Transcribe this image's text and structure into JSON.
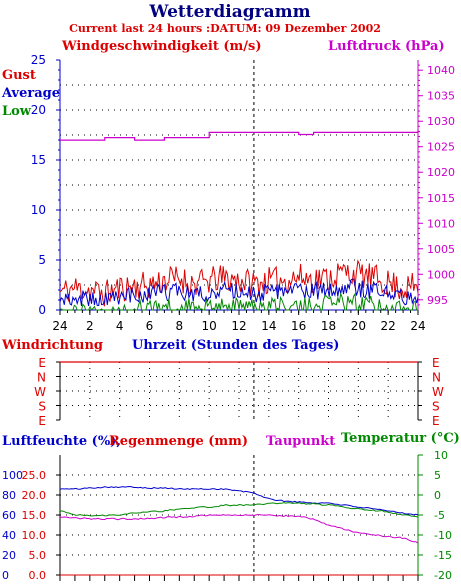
{
  "header": {
    "title": "Wetterdiagramm",
    "subtitle": "Current last 24 hours :DATUM: 09 Dezember 2002"
  },
  "colors": {
    "gust": "#dd0000",
    "average": "#0000cc",
    "low": "#008800",
    "pressure": "#cc00cc",
    "direction": "#dd0000",
    "humidity": "#0000cc",
    "rain": "#dd0000",
    "dewpoint": "#cc00cc",
    "temperature": "#008800",
    "title": "#000080"
  },
  "chart_data": [
    {
      "type": "line",
      "title": "Windgeschwindigkeit (m/s)",
      "ylabel_left": "Windgeschwindigkeit (m/s)",
      "ylabel_right": "Luftdruck (hPa)",
      "xlabel": "Uhrzeit (Stunden des Tages)",
      "legend": [
        "Gust",
        "Average",
        "Low"
      ],
      "x_ticks": [
        "24",
        "2",
        "4",
        "6",
        "8",
        "10",
        "12",
        "14",
        "16",
        "18",
        "20",
        "22",
        "24"
      ],
      "y_left_ticks": [
        "0",
        "5",
        "10",
        "15",
        "20",
        "25"
      ],
      "y_left_range": [
        0,
        25
      ],
      "y_right_ticks": [
        "995",
        "1000",
        "1005",
        "1010",
        "1015",
        "1020",
        "1025",
        "1030",
        "1035",
        "1040"
      ],
      "y_right_range": [
        993,
        1042
      ],
      "hours": [
        0,
        1,
        2,
        3,
        4,
        5,
        6,
        7,
        8,
        9,
        10,
        11,
        12,
        13,
        14,
        15,
        16,
        17,
        18,
        19,
        20,
        21,
        22,
        23,
        24
      ],
      "series": [
        {
          "name": "Gust",
          "values": [
            1.8,
            2.2,
            2.0,
            1.6,
            2.2,
            2.4,
            2.5,
            3.0,
            3.2,
            2.6,
            2.9,
            3.2,
            3.0,
            2.7,
            2.9,
            3.0,
            3.3,
            3.1,
            3.2,
            3.8,
            3.6,
            3.2,
            2.7,
            2.2,
            2.4
          ]
        },
        {
          "name": "Average",
          "values": [
            1.0,
            1.2,
            1.1,
            0.9,
            1.3,
            1.5,
            1.5,
            1.7,
            1.9,
            1.6,
            1.7,
            1.9,
            1.8,
            1.6,
            1.7,
            1.8,
            2.0,
            1.9,
            2.0,
            2.3,
            2.2,
            1.9,
            1.6,
            1.3,
            1.4
          ]
        },
        {
          "name": "Low",
          "values": [
            0.0,
            0.0,
            0.0,
            0.0,
            0.3,
            0.4,
            0.4,
            0.6,
            0.7,
            0.5,
            0.6,
            0.7,
            0.6,
            0.5,
            0.6,
            0.7,
            0.9,
            0.8,
            0.9,
            1.1,
            1.0,
            0.8,
            0.6,
            0.4,
            0.5
          ]
        },
        {
          "name": "Luftdruck",
          "values": [
            1026.3,
            1026.3,
            1026.3,
            1026.8,
            1026.8,
            1026.3,
            1026.3,
            1026.8,
            1026.8,
            1026.8,
            1027.8,
            1027.8,
            1027.8,
            1027.8,
            1027.8,
            1027.8,
            1027.4,
            1027.8,
            1027.8,
            1027.8,
            1027.8,
            1027.8,
            1027.8,
            1027.8,
            1028.3
          ]
        }
      ]
    },
    {
      "type": "line",
      "title": "Windrichtung",
      "xlabel": "Uhrzeit (Stunden des Tages)",
      "y_ticks": [
        "E",
        "N",
        "W",
        "S",
        "E"
      ],
      "series": [
        {
          "name": "Windrichtung",
          "values": [
            "E",
            "E",
            "E",
            "E",
            "E",
            "E",
            "E",
            "E",
            "E",
            "E",
            "E",
            "E",
            "E",
            "E",
            "E",
            "E",
            "E",
            "E",
            "E",
            "E",
            "E",
            "E",
            "E",
            "E",
            "E"
          ]
        }
      ]
    },
    {
      "type": "line",
      "labels": {
        "humidity": "Luftfeuchte (%),",
        "rain": "Regenmenge (mm)",
        "dewpoint": "Taupunkt",
        "temperature": "Temperatur (°C)"
      },
      "y_humidity_ticks": [
        "0",
        "20",
        "40",
        "60",
        "80",
        "100"
      ],
      "y_humidity_range": [
        0,
        100
      ],
      "y_rain_ticks": [
        "0.0",
        "5.0",
        "10.0",
        "15.0",
        "20.0",
        "25.0"
      ],
      "y_rain_range": [
        0,
        25
      ],
      "y_temperature_ticks": [
        "-20",
        "-15",
        "-10",
        "-5",
        "0",
        "5",
        "10"
      ],
      "y_temperature_range": [
        -20,
        10
      ],
      "hours": [
        0,
        1,
        2,
        3,
        4,
        5,
        6,
        7,
        8,
        9,
        10,
        11,
        12,
        13,
        14,
        15,
        16,
        17,
        18,
        19,
        20,
        21,
        22,
        23,
        24
      ],
      "series": [
        {
          "name": "Luftfeuchte",
          "values": [
            86,
            86,
            87,
            88,
            88,
            88,
            87,
            87,
            86,
            86,
            86,
            86,
            84,
            82,
            76,
            74,
            73,
            72,
            72,
            70,
            68,
            66,
            64,
            62,
            60
          ]
        },
        {
          "name": "Taupunkt",
          "values": [
            -5.5,
            -5.8,
            -5.9,
            -6.0,
            -6.0,
            -6.0,
            -5.8,
            -5.6,
            -5.5,
            -5.3,
            -5.0,
            -5.0,
            -5.0,
            -5.0,
            -5.0,
            -5.2,
            -5.3,
            -6.0,
            -7.5,
            -8.5,
            -9.5,
            -10.0,
            -10.3,
            -10.8,
            -12.0
          ]
        },
        {
          "name": "Temperatur",
          "values": [
            -4.0,
            -5.0,
            -5.2,
            -5.1,
            -5.0,
            -4.5,
            -4.2,
            -4.0,
            -3.5,
            -3.2,
            -3.0,
            -2.6,
            -2.5,
            -2.5,
            -2.1,
            -2.0,
            -2.1,
            -2.2,
            -2.5,
            -3.0,
            -3.5,
            -3.8,
            -4.2,
            -5.0,
            -5.5
          ]
        },
        {
          "name": "Regenmenge",
          "values": [
            0,
            0,
            0,
            0,
            0,
            0,
            0,
            0,
            0,
            0,
            0,
            0,
            0,
            0,
            0,
            0,
            0,
            0,
            0,
            0,
            0,
            0,
            0,
            0,
            0
          ]
        }
      ]
    }
  ]
}
